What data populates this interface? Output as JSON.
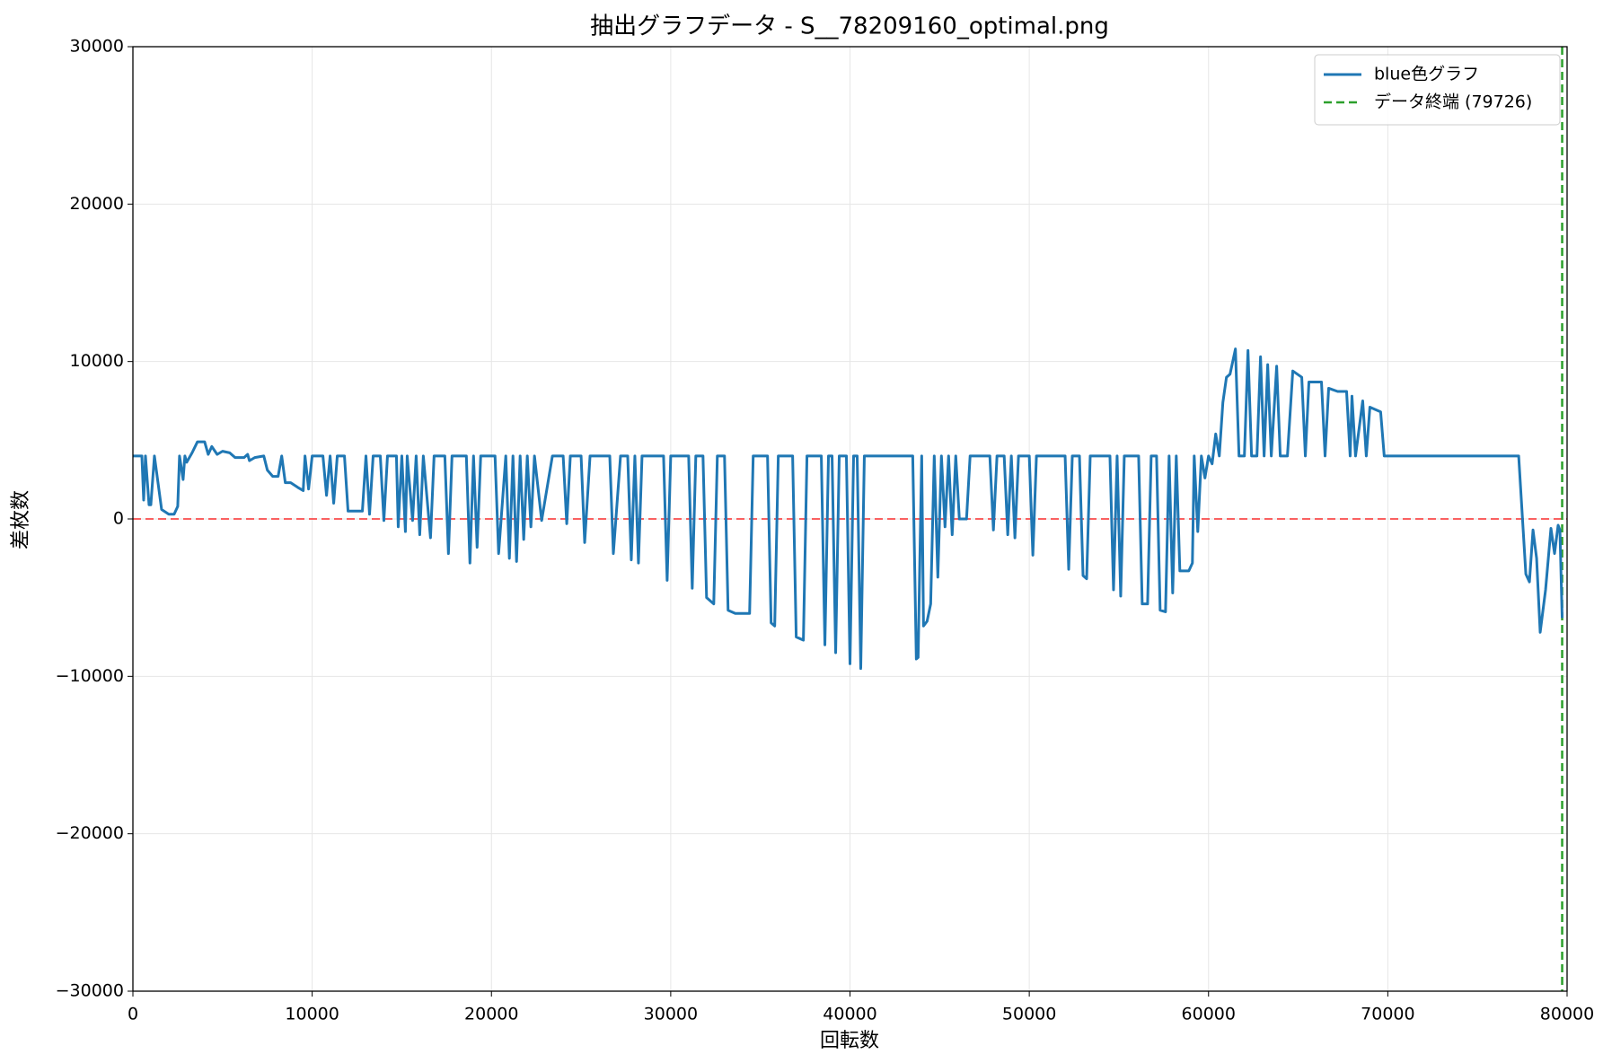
{
  "chart_data": {
    "type": "line",
    "title": "抽出グラフデータ - S__78209160_optimal.png",
    "x_label": "回転数",
    "y_label": "差枚数",
    "xlim": [
      0,
      80000
    ],
    "ylim": [
      -30000,
      30000
    ],
    "xticks": [
      0,
      10000,
      20000,
      30000,
      40000,
      50000,
      60000,
      70000,
      80000
    ],
    "yticks": [
      {
        "value": -30000,
        "label": "−30000"
      },
      {
        "value": -20000,
        "label": "−20000"
      },
      {
        "value": -10000,
        "label": "−10000"
      },
      0,
      10000,
      20000,
      30000
    ],
    "grid": true,
    "legend": "upper right",
    "series": [
      {
        "name": "blue色グラフ",
        "color": "#1f77b4",
        "x": [
          0,
          500,
          600,
          700,
          900,
          1000,
          1200,
          1600,
          2000,
          2300,
          2500,
          2600,
          2800,
          2900,
          3000,
          3300,
          3600,
          4000,
          4200,
          4400,
          4700,
          5000,
          5400,
          5700,
          6200,
          6400,
          6500,
          6800,
          7300,
          7500,
          7800,
          8100,
          8300,
          8500,
          8800,
          9200,
          9500,
          9600,
          9800,
          10000,
          10600,
          10800,
          11000,
          11200,
          11400,
          11800,
          12000,
          12800,
          13000,
          13200,
          13400,
          13800,
          14000,
          14200,
          14700,
          14800,
          15000,
          15200,
          15300,
          15600,
          15800,
          16000,
          16200,
          16600,
          16800,
          17400,
          17600,
          17800,
          18600,
          18800,
          19000,
          19200,
          19400,
          20200,
          20400,
          20800,
          21000,
          21200,
          21400,
          21600,
          21800,
          22000,
          22200,
          22400,
          22800,
          23400,
          24000,
          24200,
          24400,
          25000,
          25200,
          25500,
          26600,
          26800,
          27200,
          27600,
          27800,
          28000,
          28200,
          28400,
          29600,
          29800,
          30000,
          31000,
          31200,
          31400,
          31800,
          32000,
          32400,
          32600,
          33000,
          33200,
          33600,
          34400,
          34600,
          35400,
          35600,
          35800,
          36000,
          36800,
          37000,
          37400,
          37600,
          38400,
          38600,
          38800,
          39000,
          39200,
          39400,
          39800,
          40000,
          40200,
          40400,
          40600,
          40800,
          43500,
          43700,
          43800,
          44000,
          44100,
          44300,
          44500,
          44700,
          44900,
          45100,
          45300,
          45500,
          45700,
          45900,
          46100,
          46500,
          46700,
          47800,
          48000,
          48200,
          48600,
          48800,
          49000,
          49200,
          49400,
          50000,
          50200,
          50400,
          52000,
          52200,
          52400,
          52800,
          53000,
          53200,
          53400,
          54500,
          54700,
          54900,
          55100,
          55300,
          56100,
          56300,
          56600,
          56800,
          57100,
          57300,
          57600,
          57800,
          58000,
          58200,
          58400,
          58900,
          59100,
          59200,
          59400,
          59600,
          59800,
          60000,
          60200,
          60400,
          60600,
          60800,
          61000,
          61200,
          61500,
          61700,
          62000,
          62200,
          62400,
          62700,
          62900,
          63100,
          63300,
          63500,
          63800,
          64000,
          64400,
          64700,
          65200,
          65400,
          65600,
          66300,
          66500,
          66700,
          67200,
          67700,
          67900,
          68000,
          68200,
          68600,
          68800,
          69000,
          69600,
          69800,
          77300,
          77700,
          77900,
          78100,
          78300,
          78500,
          78800,
          79100,
          79300,
          79500,
          79600,
          79726
        ],
        "values": [
          4000,
          4000,
          1200,
          4000,
          900,
          900,
          4000,
          600,
          300,
          300,
          800,
          4000,
          2500,
          4000,
          3600,
          4200,
          4900,
          4900,
          4100,
          4600,
          4100,
          4300,
          4200,
          3900,
          3900,
          4100,
          3700,
          3900,
          4000,
          3100,
          2700,
          2700,
          4000,
          2300,
          2300,
          2000,
          1800,
          4000,
          1900,
          4000,
          4000,
          1500,
          4000,
          1000,
          4000,
          4000,
          500,
          500,
          4000,
          300,
          4000,
          4000,
          -100,
          4000,
          4000,
          -500,
          4000,
          -800,
          4000,
          -100,
          4000,
          -1000,
          4000,
          -1200,
          4000,
          4000,
          -2200,
          4000,
          4000,
          -2800,
          4000,
          -1800,
          4000,
          4000,
          -2200,
          4000,
          -2500,
          4000,
          -2700,
          4000,
          -1300,
          4000,
          -500,
          4000,
          -100,
          4000,
          4000,
          -300,
          4000,
          4000,
          -1500,
          4000,
          4000,
          -2200,
          4000,
          4000,
          -2600,
          4000,
          -2800,
          4000,
          4000,
          -3900,
          4000,
          4000,
          -4400,
          4000,
          4000,
          -5000,
          -5400,
          4000,
          4000,
          -5800,
          -6000,
          -6000,
          4000,
          4000,
          -6600,
          -6800,
          4000,
          4000,
          -7500,
          -7700,
          4000,
          4000,
          -8000,
          4000,
          4000,
          -8500,
          4000,
          4000,
          -9200,
          4000,
          4000,
          -9500,
          4000,
          4000,
          -8900,
          -8800,
          4000,
          -6800,
          -6500,
          -5400,
          4000,
          -3700,
          4000,
          -500,
          4000,
          -1000,
          4000,
          0,
          0,
          4000,
          4000,
          -700,
          4000,
          4000,
          -1000,
          4000,
          -1200,
          4000,
          4000,
          -2300,
          4000,
          4000,
          -3200,
          4000,
          4000,
          -3600,
          -3800,
          4000,
          4000,
          -4500,
          4000,
          -4900,
          4000,
          4000,
          -5400,
          -5400,
          4000,
          4000,
          -5800,
          -5900,
          4000,
          -4700,
          4000,
          -3300,
          -3300,
          -2800,
          4000,
          -800,
          4000,
          2600,
          4000,
          3500,
          5400,
          4000,
          7400,
          9000,
          9200,
          10800,
          4000,
          4000,
          10700,
          4000,
          4000,
          10300,
          4000,
          9800,
          4000,
          9700,
          4000,
          4000,
          9400,
          9000,
          4000,
          8700,
          8700,
          4000,
          8300,
          8100,
          8100,
          4000,
          7800,
          4000,
          7500,
          4000,
          7100,
          6800,
          4000,
          4000,
          -3500,
          -4000,
          -700,
          -2500,
          -7200,
          -4500,
          -600,
          -2200,
          -400,
          -700,
          -6300
        ]
      }
    ],
    "reference_lines": [
      {
        "axis": "y",
        "value": 0,
        "color": "#ff0000"
      },
      {
        "axis": "x",
        "value": 79726,
        "color": "#2ca02c",
        "name": "データ終端 (79726)"
      }
    ]
  }
}
